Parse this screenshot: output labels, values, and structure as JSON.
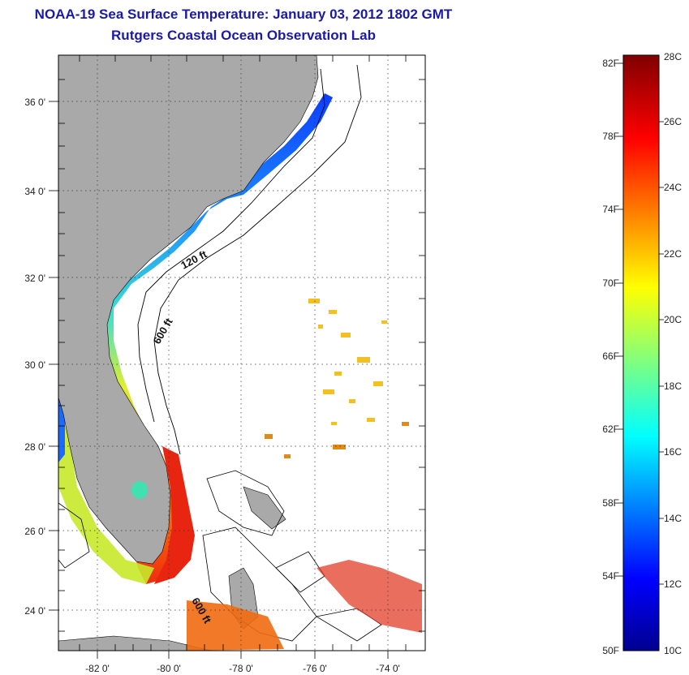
{
  "title": "NOAA-19 Sea Surface Temperature:  January 03, 2012 1802 GMT",
  "subtitle": "Rutgers Coastal Ocean Observation Lab",
  "map": {
    "lat_labels": [
      "36 0'",
      "34 0'",
      "32 0'",
      "30 0'",
      "28 0'",
      "26 0'",
      "24 0'"
    ],
    "lon_labels": [
      "-82 0'",
      "-80 0'",
      "-78 0'",
      "-76 0'",
      "-74 0'"
    ],
    "isobaths": [
      "120 ft",
      "600 ft",
      "600 ft"
    ],
    "grid": "dotted"
  },
  "colorbar": {
    "fahrenheit_labels": [
      "82F",
      "78F",
      "74F",
      "70F",
      "66F",
      "62F",
      "58F",
      "54F",
      "50F"
    ],
    "celsius_labels": [
      "28C",
      "26C",
      "24C",
      "22C",
      "20C",
      "18C",
      "16C",
      "14C",
      "12C",
      "10C"
    ],
    "range_c": [
      10,
      28
    ],
    "range_f": [
      50,
      82
    ],
    "colormap": "jet"
  },
  "colors": {
    "title": "#1a1aa6",
    "land": "#a9a9a9",
    "water": "#ffffff"
  }
}
